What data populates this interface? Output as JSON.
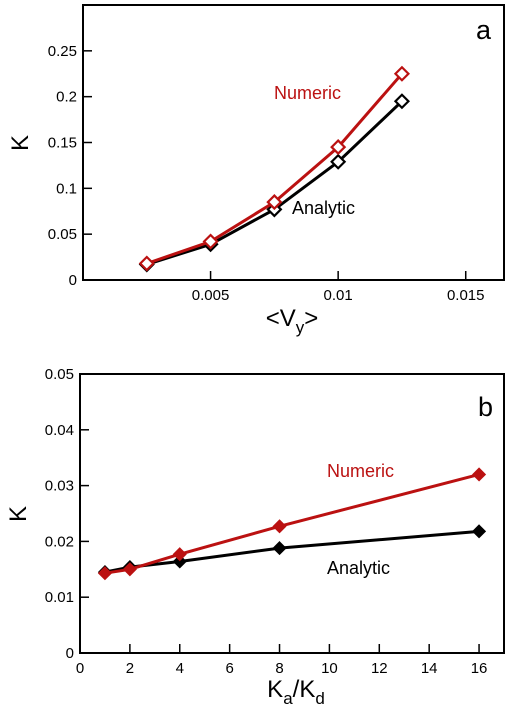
{
  "chart_data": [
    {
      "type": "line",
      "panel_label": "a",
      "xlabel": "<V",
      "xlabel_sub": "y",
      "xlabel_end": ">",
      "ylabel": "K",
      "xlim": [
        0,
        0.0165
      ],
      "ylim": [
        0,
        0.3
      ],
      "xticks": [
        0.005,
        0.01,
        0.015
      ],
      "xtick_labels": [
        "0.005",
        "0.01",
        "0.015"
      ],
      "yticks": [
        0,
        0.05,
        0.1,
        0.15,
        0.2,
        0.25
      ],
      "ytick_labels": [
        "0",
        "0.05",
        "0.1",
        "0.15",
        "0.2",
        "0.25"
      ],
      "grid": false,
      "marker_fill": "open",
      "series": [
        {
          "name": "Numeric",
          "color": "#bb1111",
          "x": [
            0.0025,
            0.005,
            0.0075,
            0.01,
            0.0125
          ],
          "y": [
            0.018,
            0.042,
            0.085,
            0.145,
            0.225
          ]
        },
        {
          "name": "Analytic",
          "color": "#000000",
          "x": [
            0.0025,
            0.005,
            0.0075,
            0.01,
            0.0125
          ],
          "y": [
            0.017,
            0.039,
            0.077,
            0.129,
            0.195
          ]
        }
      ]
    },
    {
      "type": "line",
      "panel_label": "b",
      "xlabel": "K",
      "xlabel_sub": "a",
      "xlabel_mid": "/K",
      "xlabel_sub2": "d",
      "ylabel": "K",
      "xlim": [
        0,
        17
      ],
      "ylim": [
        0,
        0.05
      ],
      "xticks": [
        0,
        2,
        4,
        6,
        8,
        10,
        12,
        14,
        16
      ],
      "xtick_labels": [
        "0",
        "2",
        "4",
        "6",
        "8",
        "10",
        "12",
        "14",
        "16"
      ],
      "yticks": [
        0,
        0.01,
        0.02,
        0.03,
        0.04,
        0.05
      ],
      "ytick_labels": [
        "0",
        "0.01",
        "0.02",
        "0.03",
        "0.04",
        "0.05"
      ],
      "grid": false,
      "marker_fill": "filled",
      "series": [
        {
          "name": "Numeric",
          "color": "#bb1111",
          "x": [
            1,
            2,
            4,
            8,
            16
          ],
          "y": [
            0.0143,
            0.015,
            0.0177,
            0.0227,
            0.032
          ]
        },
        {
          "name": "Analytic",
          "color": "#000000",
          "x": [
            1,
            2,
            4,
            8,
            16
          ],
          "y": [
            0.0145,
            0.0154,
            0.0164,
            0.0188,
            0.0218
          ]
        }
      ]
    }
  ]
}
